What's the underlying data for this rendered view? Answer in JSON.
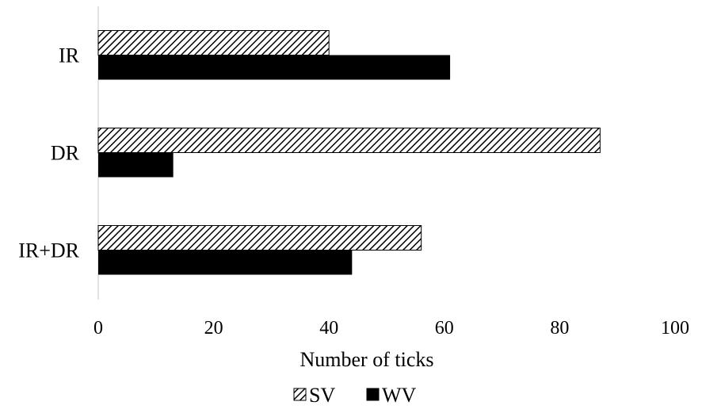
{
  "chart_data": {
    "type": "bar",
    "orientation": "horizontal",
    "categories": [
      "IR",
      "DR",
      "IR+DR"
    ],
    "series": [
      {
        "name": "SV",
        "values": [
          40,
          87,
          56
        ],
        "pattern": "diagonal-hatch"
      },
      {
        "name": "WV",
        "values": [
          61,
          13,
          44
        ],
        "pattern": "solid"
      }
    ],
    "xlabel": "Number of ticks",
    "ylabel": "",
    "xlim": [
      0,
      100
    ],
    "xticks": [
      "0",
      "20",
      "40",
      "60",
      "80",
      "100"
    ],
    "grid": false,
    "legend_position": "bottom",
    "colors": {
      "bar": "#000000",
      "background": "#ffffff",
      "axis": "#d9d9d9"
    }
  }
}
